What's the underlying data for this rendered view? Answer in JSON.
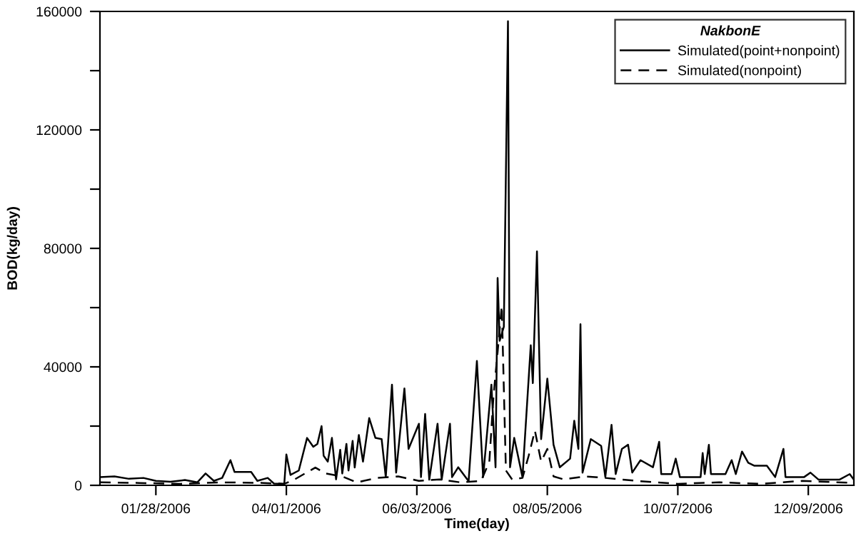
{
  "chart_data": {
    "type": "line",
    "xlabel": "Time(day)",
    "ylabel": "BOD(kg/day)",
    "legend_title": "NakbonE",
    "legend": "top right",
    "grid": false,
    "marker": "none",
    "xlim": [
      "2006-01-01",
      "2006-12-31"
    ],
    "xticks": [
      {
        "value": "2006-01-28",
        "label": "01/28/2006"
      },
      {
        "value": "2006-04-01",
        "label": "04/01/2006"
      },
      {
        "value": "2006-06-03",
        "label": "06/03/2006"
      },
      {
        "value": "2006-08-05",
        "label": "08/05/2006"
      },
      {
        "value": "2006-10-07",
        "label": "10/07/2006"
      },
      {
        "value": "2006-12-09",
        "label": "12/09/2006"
      }
    ],
    "ylim": [
      0,
      160000
    ],
    "yticks": [
      0,
      {
        "value": 20000,
        "label": null
      },
      40000,
      {
        "value": 60000,
        "label": null
      },
      80000,
      {
        "value": 100000,
        "label": null
      },
      120000,
      {
        "value": 140000,
        "label": null
      },
      160000
    ],
    "series": [
      {
        "name": "Simulated(point+nonpoint)",
        "color": "#000000",
        "line_style": "solid",
        "x": [
          "2006-01-01",
          "2006-01-08",
          "2006-01-15",
          "2006-01-22",
          "2006-01-28",
          "2006-02-04",
          "2006-02-11",
          "2006-02-17",
          "2006-02-21",
          "2006-02-25",
          "2006-03-01",
          "2006-03-05",
          "2006-03-07",
          "2006-03-15",
          "2006-03-18",
          "2006-03-23",
          "2006-03-26",
          "2006-03-31",
          "2006-04-01",
          "2006-04-03",
          "2006-04-07",
          "2006-04-11",
          "2006-04-14",
          "2006-04-16",
          "2006-04-18",
          "2006-04-19",
          "2006-04-21",
          "2006-04-23",
          "2006-04-25",
          "2006-04-27",
          "2006-04-28",
          "2006-04-30",
          "2006-05-01",
          "2006-05-03",
          "2006-05-04",
          "2006-05-06",
          "2006-05-08",
          "2006-05-11",
          "2006-05-14",
          "2006-05-17",
          "2006-05-19",
          "2006-05-22",
          "2006-05-24",
          "2006-05-28",
          "2006-05-30",
          "2006-06-04",
          "2006-06-05",
          "2006-06-07",
          "2006-06-09",
          "2006-06-13",
          "2006-06-15",
          "2006-06-19",
          "2006-06-20",
          "2006-06-23",
          "2006-06-28",
          "2006-07-02",
          "2006-07-05",
          "2006-07-09",
          "2006-07-11",
          "2006-07-12",
          "2006-07-13",
          "2006-07-15",
          "2006-07-17",
          "2006-07-18",
          "2006-07-20",
          "2006-07-24",
          "2006-07-28",
          "2006-07-29",
          "2006-07-31",
          "2006-08-02",
          "2006-08-05",
          "2006-08-08",
          "2006-08-11",
          "2006-08-16",
          "2006-08-18",
          "2006-08-20",
          "2006-08-21",
          "2006-08-22",
          "2006-08-26",
          "2006-08-31",
          "2006-09-02",
          "2006-09-05",
          "2006-09-07",
          "2006-09-10",
          "2006-09-13",
          "2006-09-15",
          "2006-09-19",
          "2006-09-25",
          "2006-09-28",
          "2006-09-29",
          "2006-10-04",
          "2006-10-06",
          "2006-10-08",
          "2006-10-18",
          "2006-10-19",
          "2006-10-20",
          "2006-10-22",
          "2006-10-23",
          "2006-10-30",
          "2006-11-02",
          "2006-11-04",
          "2006-11-07",
          "2006-11-10",
          "2006-11-13",
          "2006-11-19",
          "2006-11-23",
          "2006-11-27",
          "2006-11-28",
          "2006-12-07",
          "2006-12-10",
          "2006-12-14",
          "2006-12-24",
          "2006-12-29",
          "2006-12-31"
        ],
        "values": [
          2800,
          3000,
          2200,
          2500,
          1500,
          1200,
          1800,
          1000,
          4000,
          1500,
          2500,
          8500,
          4500,
          4500,
          1500,
          2500,
          600,
          500,
          10400,
          3500,
          5000,
          16000,
          13000,
          14000,
          20000,
          10000,
          8000,
          16000,
          2000,
          12000,
          4000,
          14000,
          5000,
          15000,
          6000,
          17000,
          8000,
          22700,
          16000,
          15600,
          2800,
          34000,
          4300,
          32700,
          12300,
          20800,
          2800,
          24100,
          1900,
          20800,
          1900,
          20800,
          2800,
          6100,
          1400,
          42000,
          2800,
          34000,
          6100,
          70000,
          48800,
          53500,
          156700,
          6100,
          16000,
          2800,
          47300,
          34500,
          79000,
          15600,
          36000,
          13700,
          6100,
          9000,
          21800,
          12300,
          54400,
          4300,
          15600,
          13300,
          2800,
          20400,
          3800,
          12300,
          13700,
          4300,
          8500,
          6100,
          14700,
          3800,
          3800,
          9000,
          2800,
          2800,
          10900,
          3800,
          13700,
          3800,
          3800,
          8500,
          3800,
          11400,
          7600,
          6600,
          6600,
          2800,
          12300,
          2800,
          2800,
          4300,
          1900,
          1900,
          3800,
          1900
        ]
      },
      {
        "name": "Simulated(nonpoint)",
        "color": "#000000",
        "line_style": "dashed",
        "x": [
          "2006-01-01",
          "2006-01-20",
          "2006-02-09",
          "2006-03-01",
          "2006-03-21",
          "2006-03-31",
          "2006-04-05",
          "2006-04-15",
          "2006-04-20",
          "2006-04-28",
          "2006-05-05",
          "2006-05-15",
          "2006-05-25",
          "2006-06-04",
          "2006-06-14",
          "2006-06-24",
          "2006-07-04",
          "2006-07-08",
          "2006-07-10",
          "2006-07-12",
          "2006-07-14",
          "2006-07-16",
          "2006-07-19",
          "2006-07-24",
          "2006-07-27",
          "2006-07-30",
          "2006-08-02",
          "2006-08-05",
          "2006-08-08",
          "2006-08-13",
          "2006-08-23",
          "2006-09-02",
          "2006-09-17",
          "2006-10-07",
          "2006-10-27",
          "2006-11-16",
          "2006-12-06",
          "2006-12-31"
        ],
        "values": [
          1000,
          800,
          500,
          1000,
          800,
          500,
          2000,
          6000,
          4000,
          3000,
          1000,
          2500,
          3000,
          1500,
          2000,
          1000,
          1500,
          8000,
          30000,
          45000,
          60600,
          5000,
          2000,
          2500,
          10000,
          18500,
          8000,
          12300,
          3000,
          2000,
          3000,
          2500,
          1500,
          500,
          1000,
          500,
          1500,
          800
        ]
      }
    ]
  }
}
